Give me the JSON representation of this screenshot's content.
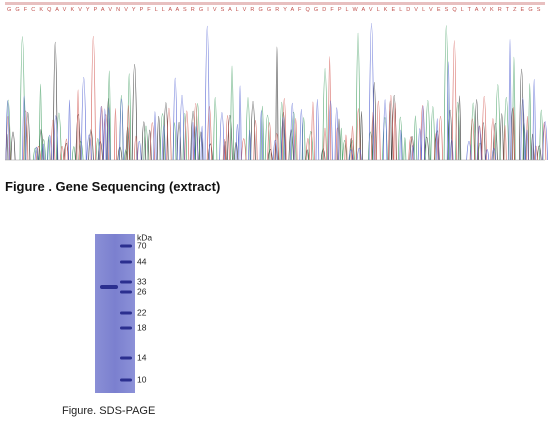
{
  "sequencing": {
    "amino_acids": "G G F C K Q A V K V Y P A V N V Y P F L L A A S R G I V S A L V R G G R Y A F Q G D F P L W A V L K E L D V L V E S Q L T A V K R T Z E G S",
    "caption": "Figure . Gene Sequencing (extract)"
  },
  "gel": {
    "unit": "kDa",
    "markers": [
      70,
      44,
      33,
      26,
      22,
      18,
      14,
      10
    ],
    "caption": "Figure. SDS-PAGE"
  }
}
